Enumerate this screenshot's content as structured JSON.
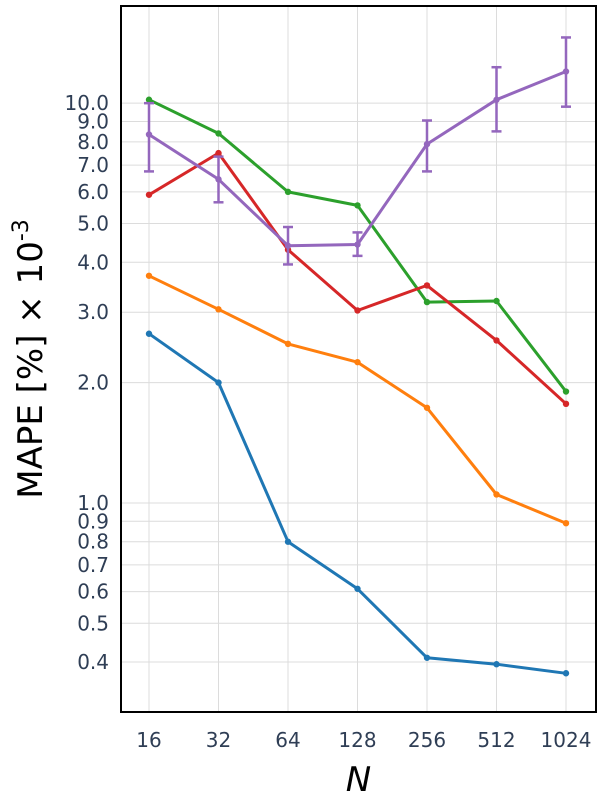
{
  "chart_data": {
    "type": "line",
    "x_scale": "log2",
    "y_scale": "log10",
    "xlabel": "N",
    "ylabel": "MAPE [%] × 10",
    "ylabel_superscript": "-3",
    "x": [
      16,
      32,
      64,
      128,
      256,
      512,
      1024
    ],
    "x_tick_labels": [
      "16",
      "32",
      "64",
      "128",
      "256",
      "512",
      "1024"
    ],
    "y_ticks": [
      0.4,
      0.5,
      0.6,
      0.7,
      0.8,
      0.9,
      1.0,
      2.0,
      3.0,
      4.0,
      5.0,
      6.0,
      7.0,
      8.0,
      9.0,
      10.0
    ],
    "y_tick_labels": [
      "0.4",
      "0.5",
      "0.6",
      "0.7",
      "0.8",
      "0.9",
      "1.0",
      "2.0",
      "3.0",
      "4.0",
      "5.0",
      "6.0",
      "7.0",
      "8.0",
      "9.0",
      "10.0"
    ],
    "ylim": [
      0.3,
      17.5
    ],
    "grid": true,
    "series": [
      {
        "color": "#1f77b4",
        "values": [
          2.65,
          2.0,
          0.8,
          0.61,
          0.41,
          0.395,
          0.375
        ]
      },
      {
        "color": "#ff7f0e",
        "values": [
          3.7,
          3.05,
          2.5,
          2.25,
          1.73,
          1.05,
          0.89
        ]
      },
      {
        "color": "#2ca02c",
        "values": [
          10.2,
          8.4,
          6.0,
          5.55,
          3.18,
          3.2,
          1.9
        ]
      },
      {
        "color": "#d62728",
        "values": [
          5.9,
          7.5,
          4.3,
          3.03,
          3.5,
          2.55,
          1.77
        ]
      },
      {
        "color": "#9467bd",
        "values": [
          8.35,
          6.45,
          4.4,
          4.43,
          7.9,
          10.2,
          12.0
        ],
        "error_low": [
          6.75,
          5.65,
          3.95,
          4.15,
          6.75,
          8.5,
          9.8
        ],
        "error_high": [
          10.0,
          7.35,
          4.9,
          4.75,
          9.05,
          12.3,
          14.6
        ]
      }
    ]
  }
}
